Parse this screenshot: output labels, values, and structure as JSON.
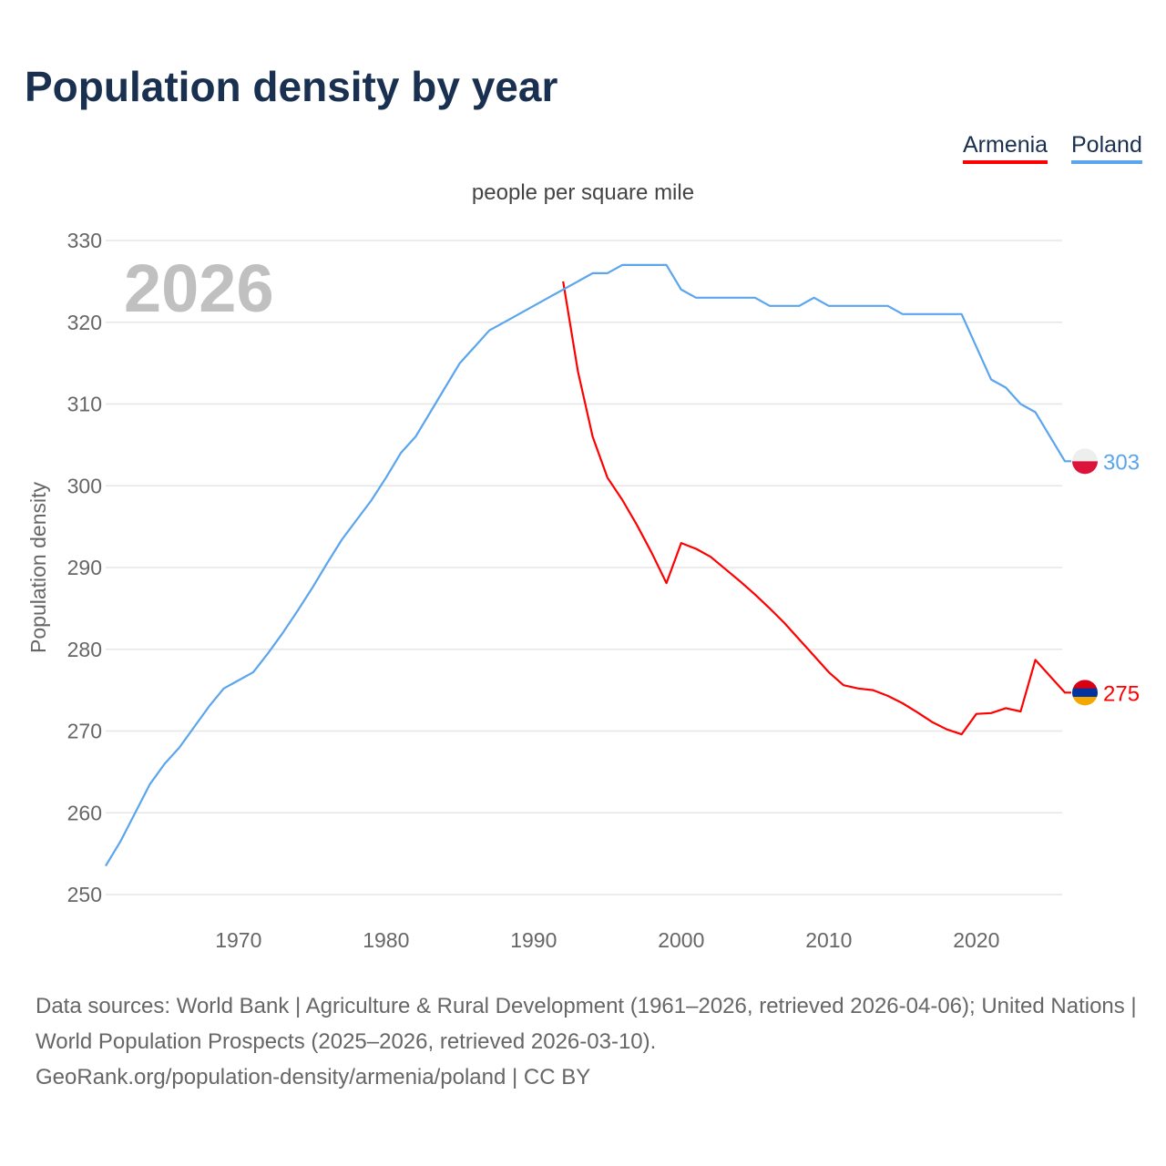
{
  "title": "Population density by year",
  "legend": [
    {
      "label": "Armenia",
      "color": "#ff0000"
    },
    {
      "label": "Poland",
      "color": "#5aa5ee"
    }
  ],
  "source": {
    "line1": "Data sources: World Bank | Agriculture & Rural Development (1961–2026, retrieved 2026-04-06); United Nations | World Population Prospects (2025–2026, retrieved 2026-03-10).",
    "line2": "GeoRank.org/population-density/armenia/poland | CC BY"
  },
  "chart_data": {
    "type": "line",
    "title": "Population density by year",
    "subtitle": "people per square mile",
    "ylabel": "Population density",
    "xlabel": "",
    "year_watermark": "2026",
    "xlim": [
      1961,
      2026
    ],
    "ylim": [
      250,
      330
    ],
    "xticks": [
      1970,
      1980,
      1990,
      2000,
      2010,
      2020
    ],
    "yticks": [
      250,
      260,
      270,
      280,
      290,
      300,
      310,
      320,
      330
    ],
    "grid": true,
    "legend_position": "top-right",
    "series": [
      {
        "name": "Armenia",
        "color": "#ff0000",
        "end_label": "275",
        "flag": "armenia-flag",
        "x": [
          1992,
          1993,
          1994,
          1995,
          1996,
          1997,
          1998,
          1999,
          2000,
          2001,
          2002,
          2003,
          2004,
          2005,
          2006,
          2007,
          2008,
          2009,
          2010,
          2011,
          2012,
          2013,
          2014,
          2015,
          2016,
          2017,
          2018,
          2019,
          2020,
          2021,
          2022,
          2023,
          2024,
          2025,
          2026
        ],
        "y": [
          325,
          314,
          306,
          301,
          298.3,
          295.2,
          291.8,
          288.1,
          293,
          292.3,
          291.3,
          289.8,
          288.3,
          286.7,
          285,
          283.2,
          281.2,
          279.2,
          277.2,
          275.6,
          275.2,
          275,
          274.3,
          273.4,
          272.3,
          271.1,
          270.2,
          269.6,
          272.1,
          272.2,
          272.8,
          272.4,
          278.7,
          276.7,
          274.7
        ]
      },
      {
        "name": "Poland",
        "color": "#5aa5ee",
        "end_label": "303",
        "flag": "poland-flag",
        "x": [
          1961,
          1962,
          1963,
          1964,
          1965,
          1966,
          1967,
          1968,
          1969,
          1970,
          1971,
          1972,
          1973,
          1974,
          1975,
          1976,
          1977,
          1978,
          1979,
          1980,
          1981,
          1982,
          1983,
          1984,
          1985,
          1986,
          1987,
          1988,
          1989,
          1990,
          1991,
          1992,
          1993,
          1994,
          1995,
          1996,
          1997,
          1998,
          1999,
          2000,
          2001,
          2002,
          2003,
          2004,
          2005,
          2006,
          2007,
          2008,
          2009,
          2010,
          2011,
          2012,
          2013,
          2014,
          2015,
          2016,
          2017,
          2018,
          2019,
          2020,
          2021,
          2022,
          2023,
          2024,
          2025,
          2026
        ],
        "y": [
          253.5,
          256.5,
          260,
          263.5,
          266,
          268,
          270.5,
          273,
          275.2,
          276.2,
          277.2,
          279.5,
          282,
          284.7,
          287.5,
          290.5,
          293.4,
          295.8,
          298.2,
          301,
          304,
          306,
          309,
          312,
          315,
          317,
          319,
          320,
          321,
          322,
          323,
          324,
          325,
          326,
          326,
          327,
          327,
          327,
          327,
          324,
          323,
          323,
          323,
          323,
          323,
          322,
          322,
          322,
          323,
          322,
          322,
          322,
          322,
          322,
          321,
          321,
          321,
          321,
          321,
          317,
          313,
          312,
          310,
          309,
          306,
          303
        ]
      }
    ]
  }
}
